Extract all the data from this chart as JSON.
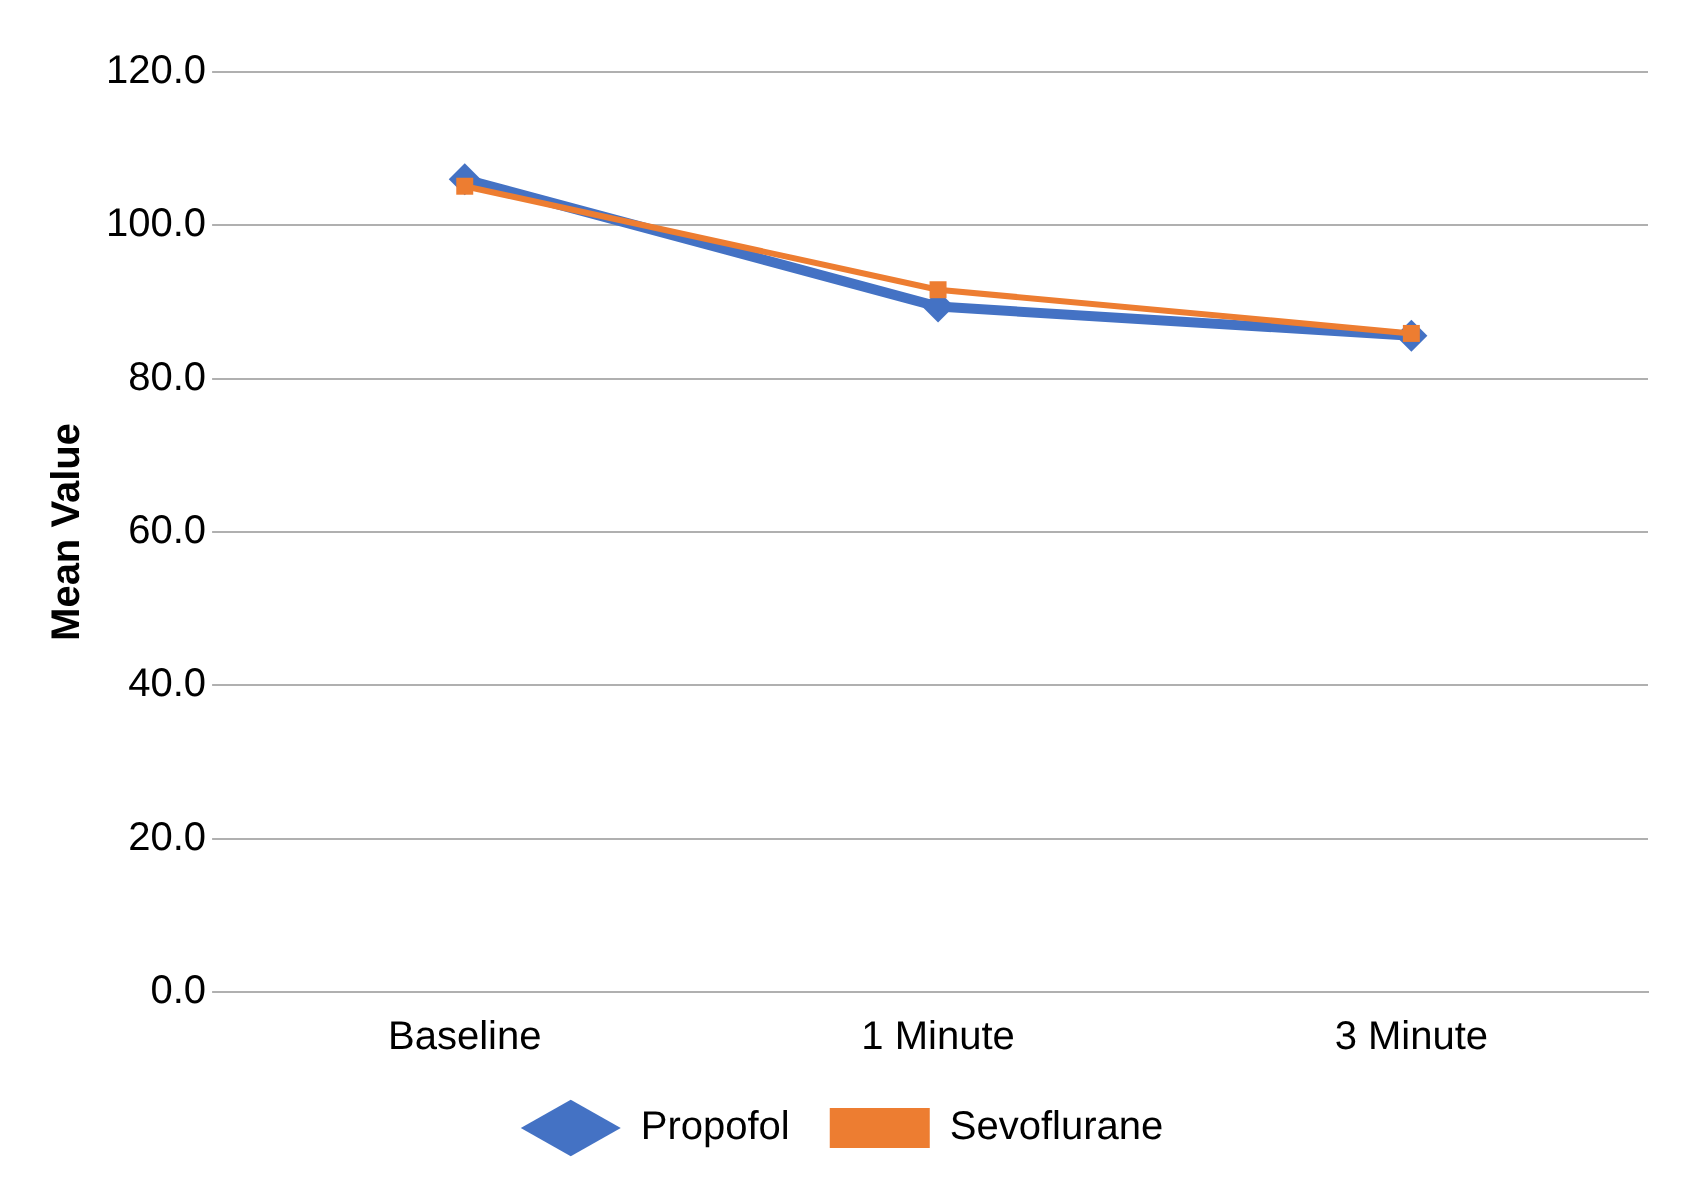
{
  "chart_data": {
    "type": "line",
    "ylabel": "Mean Value",
    "categories": [
      "Baseline",
      "1 Minute",
      "3 Minute"
    ],
    "series": [
      {
        "name": "Propofol",
        "color": "#4472c4",
        "marker": "diamond",
        "values": [
          106.0,
          89.4,
          85.6
        ]
      },
      {
        "name": "Sevoflurane",
        "color": "#ed7d31",
        "marker": "square",
        "values": [
          105.1,
          91.6,
          85.9
        ]
      }
    ],
    "ylim": [
      0,
      120
    ],
    "yticks": [
      {
        "value": 0,
        "label": "0.0"
      },
      {
        "value": 20,
        "label": "20.0"
      },
      {
        "value": 40,
        "label": "40.0"
      },
      {
        "value": 60,
        "label": "60.0"
      },
      {
        "value": 80,
        "label": "80.0"
      },
      {
        "value": 100,
        "label": "100.0"
      },
      {
        "value": 120,
        "label": "120.0"
      }
    ],
    "grid": "y",
    "legend": "bottom"
  }
}
